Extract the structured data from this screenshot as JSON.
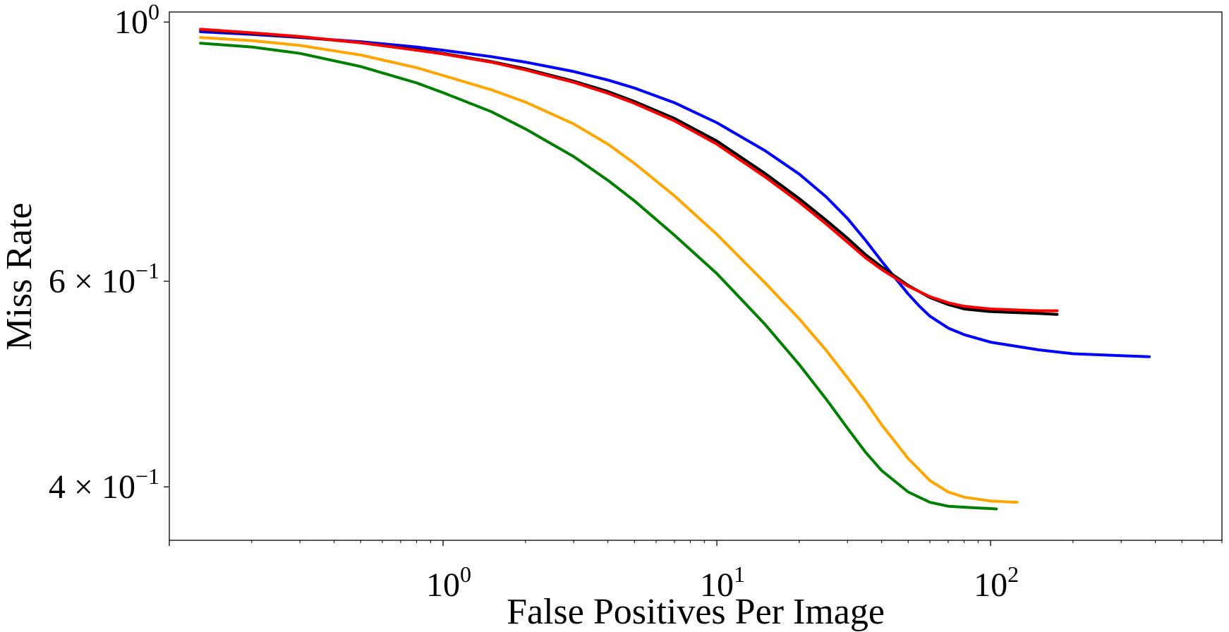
{
  "chart_data": {
    "type": "line",
    "title": "",
    "xlabel": "False Positives Per Image",
    "ylabel": "Miss Rate",
    "xscale": "log",
    "yscale": "log",
    "xlim": [
      0.1,
      700
    ],
    "ylim": [
      0.36,
      1.02
    ],
    "grid": false,
    "legend": "none",
    "x_ticks": [
      {
        "value": 1,
        "label_base": "10",
        "label_exp": "0"
      },
      {
        "value": 10,
        "label_base": "10",
        "label_exp": "1"
      },
      {
        "value": 100,
        "label_base": "10",
        "label_exp": "2"
      }
    ],
    "y_ticks": [
      {
        "value": 1.0,
        "label_base": "10",
        "label_exp": "0",
        "label_prefix": ""
      },
      {
        "value": 0.6,
        "label_base": "10",
        "label_exp": "−1",
        "label_prefix": "6 × "
      },
      {
        "value": 0.4,
        "label_base": "10",
        "label_exp": "−1",
        "label_prefix": "4 × "
      }
    ],
    "series": [
      {
        "color": "#0000ff",
        "points": [
          [
            0.13,
            0.981
          ],
          [
            0.2,
            0.976
          ],
          [
            0.3,
            0.97
          ],
          [
            0.5,
            0.962
          ],
          [
            0.8,
            0.952
          ],
          [
            1,
            0.946
          ],
          [
            1.5,
            0.934
          ],
          [
            2,
            0.924
          ],
          [
            3,
            0.907
          ],
          [
            4,
            0.892
          ],
          [
            5,
            0.878
          ],
          [
            7,
            0.853
          ],
          [
            10,
            0.82
          ],
          [
            15,
            0.776
          ],
          [
            20,
            0.741
          ],
          [
            25,
            0.709
          ],
          [
            30,
            0.679
          ],
          [
            35,
            0.65
          ],
          [
            40,
            0.624
          ],
          [
            45,
            0.603
          ],
          [
            50,
            0.585
          ],
          [
            55,
            0.571
          ],
          [
            60,
            0.56
          ],
          [
            70,
            0.547
          ],
          [
            80,
            0.54
          ],
          [
            100,
            0.532
          ],
          [
            150,
            0.524
          ],
          [
            200,
            0.52
          ],
          [
            300,
            0.518
          ],
          [
            380,
            0.517
          ]
        ]
      },
      {
        "color": "#000000",
        "points": [
          [
            0.13,
            0.985
          ],
          [
            0.2,
            0.978
          ],
          [
            0.3,
            0.971
          ],
          [
            0.5,
            0.96
          ],
          [
            0.8,
            0.947
          ],
          [
            1,
            0.94
          ],
          [
            1.5,
            0.925
          ],
          [
            2,
            0.912
          ],
          [
            3,
            0.89
          ],
          [
            4,
            0.872
          ],
          [
            5,
            0.855
          ],
          [
            7,
            0.827
          ],
          [
            10,
            0.791
          ],
          [
            15,
            0.742
          ],
          [
            20,
            0.706
          ],
          [
            25,
            0.677
          ],
          [
            30,
            0.653
          ],
          [
            35,
            0.632
          ],
          [
            40,
            0.617
          ],
          [
            50,
            0.595
          ],
          [
            60,
            0.581
          ],
          [
            70,
            0.573
          ],
          [
            80,
            0.568
          ],
          [
            100,
            0.565
          ],
          [
            150,
            0.563
          ],
          [
            175,
            0.562
          ]
        ]
      },
      {
        "color": "#ff0000",
        "points": [
          [
            0.13,
            0.986
          ],
          [
            0.2,
            0.979
          ],
          [
            0.3,
            0.972
          ],
          [
            0.5,
            0.96
          ],
          [
            0.8,
            0.946
          ],
          [
            1,
            0.939
          ],
          [
            1.5,
            0.924
          ],
          [
            2,
            0.91
          ],
          [
            3,
            0.888
          ],
          [
            4,
            0.869
          ],
          [
            5,
            0.852
          ],
          [
            7,
            0.823
          ],
          [
            10,
            0.786
          ],
          [
            15,
            0.737
          ],
          [
            20,
            0.701
          ],
          [
            25,
            0.672
          ],
          [
            30,
            0.648
          ],
          [
            35,
            0.628
          ],
          [
            40,
            0.614
          ],
          [
            50,
            0.594
          ],
          [
            60,
            0.582
          ],
          [
            70,
            0.575
          ],
          [
            80,
            0.571
          ],
          [
            100,
            0.568
          ],
          [
            150,
            0.566
          ],
          [
            175,
            0.566
          ]
        ]
      },
      {
        "color": "#ffa500",
        "points": [
          [
            0.13,
            0.97
          ],
          [
            0.2,
            0.964
          ],
          [
            0.3,
            0.955
          ],
          [
            0.5,
            0.937
          ],
          [
            0.8,
            0.914
          ],
          [
            1,
            0.9
          ],
          [
            1.5,
            0.875
          ],
          [
            2,
            0.854
          ],
          [
            3,
            0.818
          ],
          [
            4,
            0.786
          ],
          [
            5,
            0.757
          ],
          [
            7,
            0.71
          ],
          [
            10,
            0.658
          ],
          [
            15,
            0.598
          ],
          [
            20,
            0.557
          ],
          [
            25,
            0.524
          ],
          [
            30,
            0.496
          ],
          [
            35,
            0.473
          ],
          [
            40,
            0.452
          ],
          [
            50,
            0.423
          ],
          [
            60,
            0.405
          ],
          [
            70,
            0.396
          ],
          [
            80,
            0.392
          ],
          [
            100,
            0.389
          ],
          [
            125,
            0.388
          ]
        ]
      },
      {
        "color": "#008000",
        "points": [
          [
            0.13,
            0.959
          ],
          [
            0.2,
            0.952
          ],
          [
            0.3,
            0.94
          ],
          [
            0.5,
            0.916
          ],
          [
            0.8,
            0.887
          ],
          [
            1,
            0.87
          ],
          [
            1.5,
            0.838
          ],
          [
            2,
            0.81
          ],
          [
            3,
            0.767
          ],
          [
            4,
            0.732
          ],
          [
            5,
            0.703
          ],
          [
            7,
            0.657
          ],
          [
            10,
            0.609
          ],
          [
            15,
            0.551
          ],
          [
            20,
            0.509
          ],
          [
            25,
            0.476
          ],
          [
            30,
            0.449
          ],
          [
            35,
            0.428
          ],
          [
            40,
            0.413
          ],
          [
            50,
            0.396
          ],
          [
            60,
            0.388
          ],
          [
            70,
            0.385
          ],
          [
            85,
            0.384
          ],
          [
            105,
            0.383
          ]
        ]
      }
    ]
  }
}
